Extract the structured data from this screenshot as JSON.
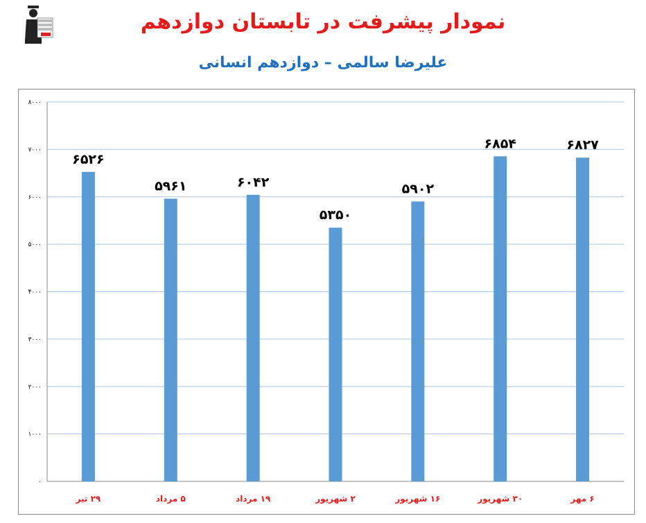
{
  "header": {
    "title": "نمودار پیشرفت در تابستان دوازدهم",
    "subtitle": "علیرضا سالمی – دوازدهم انسانی"
  },
  "colors": {
    "title": "#e31b1b",
    "subtitle": "#1f6fbf",
    "bar": "#5b9bd5",
    "gridline": "#a9c4e4",
    "category": "#e31b1b"
  },
  "chart_data": {
    "type": "bar",
    "title": "",
    "xlabel": "",
    "ylabel": "",
    "categories": [
      "۲۹ تیر",
      "۵ مرداد",
      "۱۹ مرداد",
      "۲ شهریور",
      "۱۶ شهریور",
      "۳۰ شهریور",
      "۶ مهر"
    ],
    "values": [
      6526,
      5961,
      6042,
      5350,
      5902,
      6854,
      6827
    ],
    "value_labels": [
      "۶۵۲۶",
      "۵۹۶۱",
      "۶۰۴۲",
      "۵۳۵۰",
      "۵۹۰۲",
      "۶۸۵۴",
      "۶۸۲۷"
    ],
    "ylim": [
      0,
      8000
    ],
    "yticks": [
      0,
      1000,
      2000,
      3000,
      4000,
      5000,
      6000,
      7000,
      8000
    ],
    "ytick_labels": [
      "۰",
      "۱۰۰۰",
      "۲۰۰۰",
      "۳۰۰۰",
      "۴۰۰۰",
      "۵۰۰۰",
      "۶۰۰۰",
      "۷۰۰۰",
      "۸۰۰۰"
    ],
    "grid": true,
    "legend": "none"
  }
}
